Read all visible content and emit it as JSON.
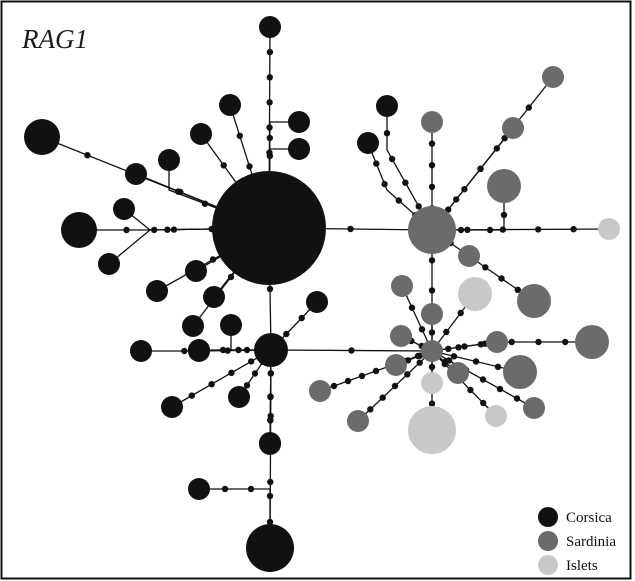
{
  "title": "RAG1",
  "colors": {
    "corsica": "#111111",
    "sardinia": "#6b6b6b",
    "islets": "#c8c8c8",
    "line": "#111111",
    "border": "#111111"
  },
  "legend": [
    {
      "key": "corsica",
      "label": "Corsica"
    },
    {
      "key": "sardinia",
      "label": "Sardinia"
    },
    {
      "key": "islets",
      "label": "Islets"
    }
  ],
  "nodes": [
    {
      "id": "hub",
      "pop": "corsica",
      "size": 57
    },
    {
      "id": "hub2",
      "pop": "corsica",
      "size": 17
    },
    {
      "id": "top",
      "pop": "corsica",
      "size": 11
    },
    {
      "id": "c_bigleft",
      "pop": "corsica",
      "size": 18
    },
    {
      "id": "c_left",
      "pop": "corsica",
      "size": 18
    },
    {
      "id": "c_ul1",
      "pop": "corsica",
      "size": 11
    },
    {
      "id": "c_ul2",
      "pop": "corsica",
      "size": 11
    },
    {
      "id": "c_ul3",
      "pop": "corsica",
      "size": 11
    },
    {
      "id": "c_ul4",
      "pop": "corsica",
      "size": 11
    },
    {
      "id": "c_ut1",
      "pop": "corsica",
      "size": 11
    },
    {
      "id": "c_ut2",
      "pop": "corsica",
      "size": 11
    },
    {
      "id": "c_tr1",
      "pop": "corsica",
      "size": 11
    },
    {
      "id": "c_tr2",
      "pop": "corsica",
      "size": 11
    },
    {
      "id": "c_l1",
      "pop": "corsica",
      "size": 11
    },
    {
      "id": "c_l2",
      "pop": "corsica",
      "size": 11
    },
    {
      "id": "c_l3",
      "pop": "corsica",
      "size": 11
    },
    {
      "id": "c_l4",
      "pop": "corsica",
      "size": 11
    },
    {
      "id": "c_l5",
      "pop": "corsica",
      "size": 11
    },
    {
      "id": "c_l6",
      "pop": "corsica",
      "size": 11
    },
    {
      "id": "c_l7",
      "pop": "corsica",
      "size": 11
    },
    {
      "id": "c_h2a",
      "pop": "corsica",
      "size": 11
    },
    {
      "id": "c_h2b",
      "pop": "corsica",
      "size": 11
    },
    {
      "id": "c_h2c",
      "pop": "corsica",
      "size": 11
    },
    {
      "id": "c_h2d",
      "pop": "corsica",
      "size": 11
    },
    {
      "id": "c_h2e",
      "pop": "corsica",
      "size": 11
    },
    {
      "id": "c_h2f",
      "pop": "corsica",
      "size": 11
    },
    {
      "id": "c_h2g",
      "pop": "corsica",
      "size": 11
    },
    {
      "id": "c_bottom",
      "pop": "corsica",
      "size": 24
    },
    {
      "id": "c_r1",
      "pop": "corsica",
      "size": 11
    },
    {
      "id": "c_r2",
      "pop": "corsica",
      "size": 11
    },
    {
      "id": "s_hub",
      "pop": "sardinia",
      "size": 24
    },
    {
      "id": "s_hub2",
      "pop": "sardinia",
      "size": 11
    },
    {
      "id": "s_1",
      "pop": "sardinia",
      "size": 11
    },
    {
      "id": "s_2",
      "pop": "sardinia",
      "size": 11
    },
    {
      "id": "s_3",
      "pop": "sardinia",
      "size": 11
    },
    {
      "id": "s_4",
      "pop": "sardinia",
      "size": 17
    },
    {
      "id": "s_5",
      "pop": "sardinia",
      "size": 11
    },
    {
      "id": "s_6",
      "pop": "sardinia",
      "size": 17
    },
    {
      "id": "s_7",
      "pop": "sardinia",
      "size": 11
    },
    {
      "id": "s_8",
      "pop": "sardinia",
      "size": 11
    },
    {
      "id": "s_9",
      "pop": "sardinia",
      "size": 11
    },
    {
      "id": "s_10",
      "pop": "sardinia",
      "size": 17
    },
    {
      "id": "s_11",
      "pop": "sardinia",
      "size": 17
    },
    {
      "id": "s_12",
      "pop": "sardinia",
      "size": 11
    },
    {
      "id": "s_13",
      "pop": "sardinia",
      "size": 11
    },
    {
      "id": "s_14",
      "pop": "sardinia",
      "size": 11
    },
    {
      "id": "s_15",
      "pop": "sardinia",
      "size": 11
    },
    {
      "id": "s_16",
      "pop": "sardinia",
      "size": 11
    },
    {
      "id": "s_17",
      "pop": "sardinia",
      "size": 11
    },
    {
      "id": "i_1",
      "pop": "islets",
      "size": 11
    },
    {
      "id": "i_2",
      "pop": "islets",
      "size": 17
    },
    {
      "id": "i_3",
      "pop": "islets",
      "size": 11
    },
    {
      "id": "i_4",
      "pop": "islets",
      "size": 11
    },
    {
      "id": "i_5",
      "pop": "islets",
      "size": 24
    }
  ],
  "edges": [
    {
      "from": "hub",
      "to": "top",
      "steps": 7
    },
    {
      "from": "hub",
      "to": "c_bigleft",
      "steps": 4
    },
    {
      "from": "hub",
      "to": "c_left",
      "steps": 3
    },
    {
      "from": "hub",
      "to": "c_ul1",
      "steps": 2
    },
    {
      "from": "hub",
      "to": "c_ul2",
      "steps": 1
    },
    {
      "from": "hub",
      "to": "c_ul3",
      "steps": 2
    },
    {
      "from": "hub",
      "to": "c_ul4",
      "steps": 2
    },
    {
      "from": "hub",
      "to": "c_ut1",
      "steps": 3
    },
    {
      "from": "hub",
      "to": "c_ut2",
      "steps": 2
    },
    {
      "from": "hub",
      "to": "c_tr1",
      "steps": 2
    },
    {
      "from": "hub",
      "to": "c_tr2",
      "steps": 2
    },
    {
      "from": "hub",
      "to": "c_l1",
      "steps": 1
    },
    {
      "from": "hub",
      "to": "c_l2",
      "steps": 1
    },
    {
      "from": "hub",
      "to": "c_l3",
      "steps": 1
    },
    {
      "from": "hub",
      "to": "c_l4",
      "steps": 1
    },
    {
      "from": "hub",
      "to": "s_hub",
      "steps": 1
    },
    {
      "from": "hub",
      "to": "hub2",
      "steps": 1
    },
    {
      "from": "hub2",
      "to": "c_l5",
      "steps": 2
    },
    {
      "from": "hub2",
      "to": "c_l6",
      "steps": 1
    },
    {
      "from": "hub2",
      "to": "c_l7",
      "steps": 2
    },
    {
      "from": "hub2",
      "to": "c_h2a",
      "steps": 4
    },
    {
      "from": "hub2",
      "to": "c_h2b",
      "steps": 3
    },
    {
      "from": "hub2",
      "to": "c_h2c",
      "steps": 2
    },
    {
      "from": "hub2",
      "to": "c_h2d",
      "steps": 3
    },
    {
      "from": "hub2",
      "to": "c_h2e",
      "steps": 3
    },
    {
      "from": "hub2",
      "to": "c_bottom",
      "steps": 2
    },
    {
      "from": "c_bottom",
      "to": "c_h2g",
      "steps": 4
    },
    {
      "from": "hub2",
      "to": "s_hub2",
      "steps": 1
    },
    {
      "from": "c_h2f",
      "to": "c_h2c",
      "steps": 1
    },
    {
      "from": "s_hub",
      "to": "c_r1",
      "steps": 4
    },
    {
      "from": "s_hub",
      "to": "c_r2",
      "steps": 4
    },
    {
      "from": "s_hub",
      "to": "s_1",
      "steps": 4
    },
    {
      "from": "s_hub",
      "to": "s_2",
      "steps": 4
    },
    {
      "from": "s_hub",
      "to": "s_3",
      "steps": 4
    },
    {
      "from": "s_hub",
      "to": "s_4",
      "steps": 3
    },
    {
      "from": "s_hub",
      "to": "i_1",
      "steps": 4
    },
    {
      "from": "s_hub",
      "to": "s_5",
      "steps": 1
    },
    {
      "from": "s_5",
      "to": "s_6",
      "steps": 3
    },
    {
      "from": "s_hub",
      "to": "s_hub2",
      "steps": 3
    },
    {
      "from": "s_hub2",
      "to": "s_7",
      "steps": 2
    },
    {
      "from": "s_hub2",
      "to": "s_8",
      "steps": 1
    },
    {
      "from": "s_hub2",
      "to": "i_2",
      "steps": 2
    },
    {
      "from": "s_hub2",
      "to": "s_9",
      "steps": 2
    },
    {
      "from": "s_hub2",
      "to": "s_10",
      "steps": 5
    },
    {
      "from": "s_hub2",
      "to": "s_11",
      "steps": 3
    },
    {
      "from": "s_hub2",
      "to": "s_12",
      "steps": 3
    },
    {
      "from": "s_hub2",
      "to": "s_13",
      "steps": 5
    },
    {
      "from": "s_hub2",
      "to": "i_3",
      "steps": 1
    },
    {
      "from": "s_hub2",
      "to": "s_14",
      "steps": 1
    },
    {
      "from": "s_hub2",
      "to": "s_15",
      "steps": 2
    },
    {
      "from": "s_hub2",
      "to": "s_16",
      "steps": 7
    },
    {
      "from": "s_hub2",
      "to": "s_17",
      "steps": 5
    },
    {
      "from": "s_hub2",
      "to": "i_4",
      "steps": 4
    },
    {
      "from": "s_hub2",
      "to": "i_5",
      "steps": 2
    }
  ]
}
